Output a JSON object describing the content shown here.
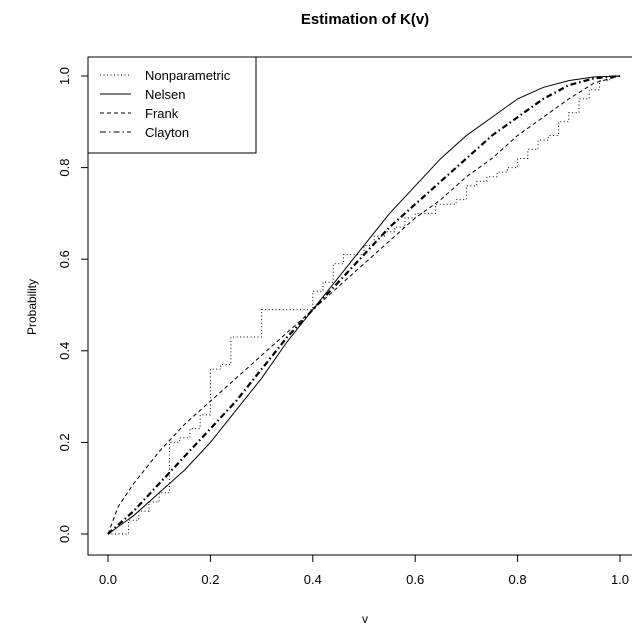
{
  "chart_data": {
    "type": "line",
    "title": "Estimation of K(v)",
    "xlabel": "v",
    "ylabel": "Probability",
    "xlim": [
      0,
      1
    ],
    "ylim": [
      0,
      1
    ],
    "x_ticks": [
      "0.0",
      "0.2",
      "0.4",
      "0.6",
      "0.8",
      "1.0"
    ],
    "y_ticks": [
      "0.0",
      "0.2",
      "0.4",
      "0.6",
      "0.8",
      "1.0"
    ],
    "grid": false,
    "legend_position": "top-left",
    "series": [
      {
        "name": "Nonparametric",
        "line_style": "dotted",
        "step": true,
        "x": [
          0,
          0.02,
          0.04,
          0.06,
          0.08,
          0.1,
          0.12,
          0.14,
          0.16,
          0.18,
          0.2,
          0.22,
          0.24,
          0.26,
          0.28,
          0.3,
          0.32,
          0.34,
          0.36,
          0.38,
          0.4,
          0.42,
          0.44,
          0.46,
          0.48,
          0.5,
          0.52,
          0.54,
          0.56,
          0.58,
          0.6,
          0.62,
          0.64,
          0.66,
          0.68,
          0.7,
          0.72,
          0.74,
          0.76,
          0.78,
          0.8,
          0.82,
          0.84,
          0.86,
          0.88,
          0.9,
          0.92,
          0.94,
          0.96,
          0.98,
          1.0
        ],
        "y": [
          0,
          0,
          0.03,
          0.05,
          0.07,
          0.09,
          0.2,
          0.21,
          0.23,
          0.26,
          0.36,
          0.37,
          0.43,
          0.43,
          0.43,
          0.49,
          0.49,
          0.49,
          0.49,
          0.49,
          0.53,
          0.55,
          0.59,
          0.61,
          0.61,
          0.63,
          0.65,
          0.66,
          0.67,
          0.69,
          0.7,
          0.7,
          0.72,
          0.72,
          0.73,
          0.76,
          0.77,
          0.78,
          0.79,
          0.8,
          0.82,
          0.84,
          0.86,
          0.87,
          0.9,
          0.92,
          0.95,
          0.97,
          0.99,
          1.0,
          1.0
        ]
      },
      {
        "name": "Nelsen",
        "line_style": "solid",
        "x": [
          0,
          0.05,
          0.1,
          0.15,
          0.2,
          0.25,
          0.3,
          0.35,
          0.4,
          0.45,
          0.5,
          0.55,
          0.6,
          0.65,
          0.7,
          0.75,
          0.8,
          0.85,
          0.9,
          0.95,
          1.0
        ],
        "y": [
          0,
          0.04,
          0.09,
          0.14,
          0.2,
          0.27,
          0.34,
          0.42,
          0.49,
          0.56,
          0.63,
          0.7,
          0.76,
          0.82,
          0.87,
          0.91,
          0.95,
          0.975,
          0.99,
          0.998,
          1.0
        ]
      },
      {
        "name": "Frank",
        "line_style": "dashed",
        "x": [
          0,
          0.02,
          0.05,
          0.1,
          0.15,
          0.2,
          0.25,
          0.3,
          0.35,
          0.4,
          0.45,
          0.5,
          0.55,
          0.6,
          0.65,
          0.7,
          0.75,
          0.8,
          0.85,
          0.9,
          0.95,
          1.0
        ],
        "y": [
          0,
          0.06,
          0.11,
          0.18,
          0.24,
          0.29,
          0.34,
          0.39,
          0.44,
          0.49,
          0.54,
          0.59,
          0.64,
          0.69,
          0.73,
          0.78,
          0.82,
          0.87,
          0.91,
          0.95,
          0.985,
          1.0
        ]
      },
      {
        "name": "Clayton",
        "line_style": "dotdash",
        "x": [
          0,
          0.05,
          0.1,
          0.15,
          0.2,
          0.25,
          0.3,
          0.35,
          0.4,
          0.45,
          0.5,
          0.55,
          0.6,
          0.65,
          0.7,
          0.75,
          0.8,
          0.85,
          0.9,
          0.95,
          1.0
        ],
        "y": [
          0,
          0.05,
          0.11,
          0.17,
          0.23,
          0.29,
          0.36,
          0.43,
          0.49,
          0.55,
          0.61,
          0.67,
          0.72,
          0.77,
          0.82,
          0.87,
          0.91,
          0.95,
          0.98,
          0.995,
          1.0
        ]
      }
    ]
  }
}
